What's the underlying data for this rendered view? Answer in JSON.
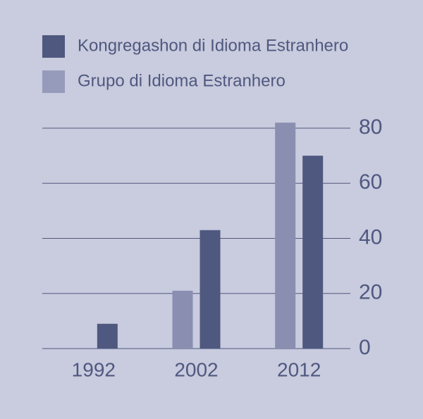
{
  "chart_data": {
    "type": "bar",
    "categories": [
      "1992",
      "2002",
      "2012"
    ],
    "series": [
      {
        "name": "Grupo di Idioma Estranhero",
        "color": "#8a8fb1",
        "values": [
          0,
          21,
          82
        ]
      },
      {
        "name": "Kongregashon di Idioma Estranhero",
        "color": "#4f587f",
        "values": [
          9,
          43,
          70
        ]
      }
    ],
    "ylim": [
      0,
      80
    ],
    "yticks": [
      0,
      20,
      40,
      60,
      80
    ],
    "grid": true
  }
}
